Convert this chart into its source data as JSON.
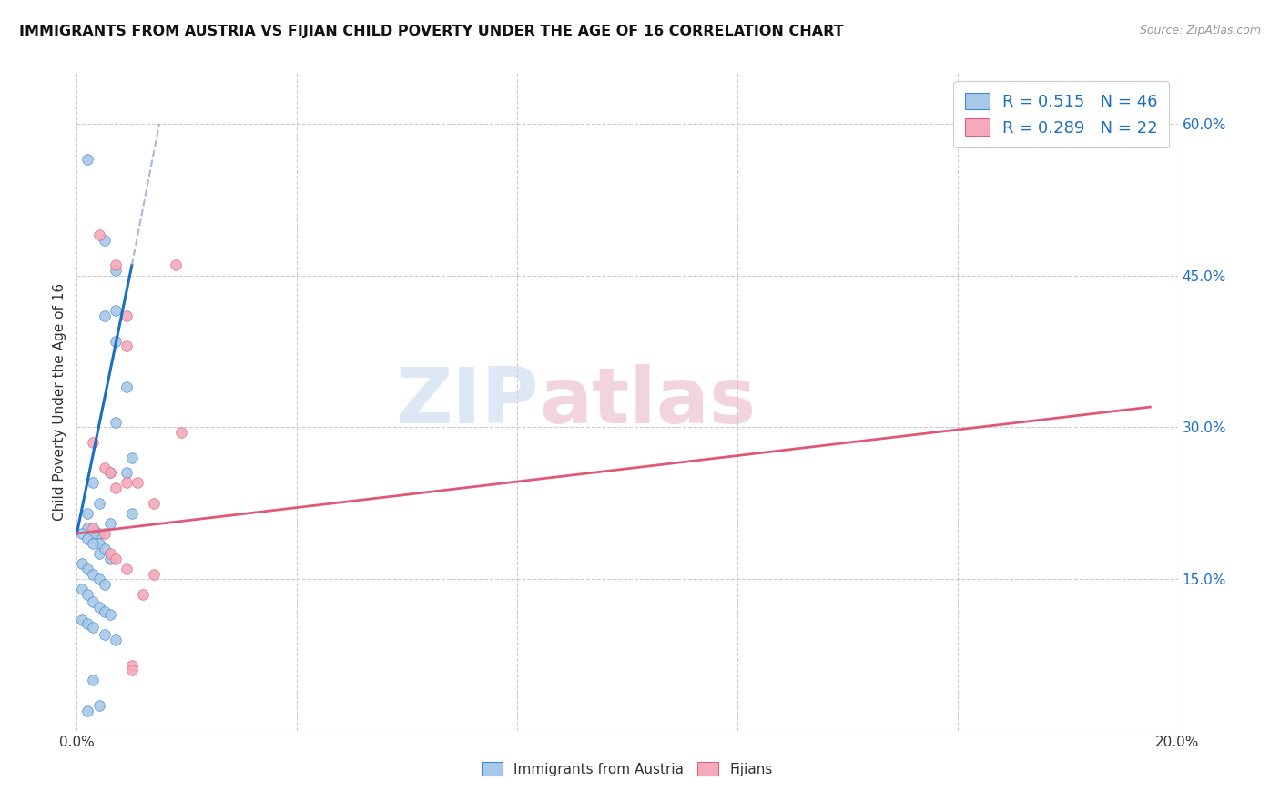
{
  "title": "IMMIGRANTS FROM AUSTRIA VS FIJIAN CHILD POVERTY UNDER THE AGE OF 16 CORRELATION CHART",
  "source": "Source: ZipAtlas.com",
  "ylabel": "Child Poverty Under the Age of 16",
  "xlim": [
    0.0,
    0.2
  ],
  "ylim": [
    0.0,
    0.65
  ],
  "xtick_pos": [
    0.0,
    0.04,
    0.08,
    0.12,
    0.16,
    0.2
  ],
  "xticklabels": [
    "0.0%",
    "",
    "",
    "",
    "",
    "20.0%"
  ],
  "ytick_pos": [
    0.0,
    0.15,
    0.3,
    0.45,
    0.6
  ],
  "ytick_labels": [
    "",
    "15.0%",
    "30.0%",
    "45.0%",
    "60.0%"
  ],
  "legend_R1": "R = 0.515",
  "legend_N1": "N = 46",
  "legend_R2": "R = 0.289",
  "legend_N2": "N = 22",
  "austria_color": "#a8c8e8",
  "fijian_color": "#f4aabb",
  "austria_edge_color": "#4488cc",
  "fijian_edge_color": "#e06080",
  "austria_line_color": "#1a6fc4",
  "fijian_line_color": "#e05878",
  "austria_scatter": [
    [
      0.002,
      0.565
    ],
    [
      0.005,
      0.485
    ],
    [
      0.005,
      0.41
    ],
    [
      0.007,
      0.455
    ],
    [
      0.007,
      0.415
    ],
    [
      0.007,
      0.385
    ],
    [
      0.009,
      0.34
    ],
    [
      0.01,
      0.27
    ],
    [
      0.007,
      0.305
    ],
    [
      0.009,
      0.255
    ],
    [
      0.01,
      0.215
    ],
    [
      0.003,
      0.245
    ],
    [
      0.006,
      0.255
    ],
    [
      0.003,
      0.2
    ],
    [
      0.004,
      0.195
    ],
    [
      0.006,
      0.205
    ],
    [
      0.002,
      0.215
    ],
    [
      0.004,
      0.225
    ],
    [
      0.002,
      0.2
    ],
    [
      0.003,
      0.195
    ],
    [
      0.004,
      0.185
    ],
    [
      0.001,
      0.195
    ],
    [
      0.002,
      0.19
    ],
    [
      0.003,
      0.185
    ],
    [
      0.004,
      0.175
    ],
    [
      0.005,
      0.18
    ],
    [
      0.006,
      0.17
    ],
    [
      0.001,
      0.165
    ],
    [
      0.002,
      0.16
    ],
    [
      0.003,
      0.155
    ],
    [
      0.004,
      0.15
    ],
    [
      0.005,
      0.145
    ],
    [
      0.001,
      0.14
    ],
    [
      0.002,
      0.135
    ],
    [
      0.003,
      0.128
    ],
    [
      0.004,
      0.122
    ],
    [
      0.005,
      0.118
    ],
    [
      0.006,
      0.115
    ],
    [
      0.001,
      0.11
    ],
    [
      0.002,
      0.106
    ],
    [
      0.003,
      0.102
    ],
    [
      0.005,
      0.095
    ],
    [
      0.007,
      0.09
    ],
    [
      0.003,
      0.05
    ],
    [
      0.004,
      0.025
    ],
    [
      0.002,
      0.02
    ]
  ],
  "fijian_scatter": [
    [
      0.004,
      0.49
    ],
    [
      0.007,
      0.46
    ],
    [
      0.009,
      0.41
    ],
    [
      0.009,
      0.38
    ],
    [
      0.018,
      0.46
    ],
    [
      0.003,
      0.285
    ],
    [
      0.005,
      0.26
    ],
    [
      0.006,
      0.255
    ],
    [
      0.007,
      0.24
    ],
    [
      0.009,
      0.245
    ],
    [
      0.011,
      0.245
    ],
    [
      0.014,
      0.225
    ],
    [
      0.003,
      0.2
    ],
    [
      0.005,
      0.195
    ],
    [
      0.006,
      0.175
    ],
    [
      0.007,
      0.17
    ],
    [
      0.009,
      0.16
    ],
    [
      0.014,
      0.155
    ],
    [
      0.019,
      0.295
    ],
    [
      0.012,
      0.135
    ],
    [
      0.01,
      0.065
    ],
    [
      0.01,
      0.06
    ]
  ],
  "austria_trendline": [
    [
      0.0,
      0.195
    ],
    [
      0.01,
      0.46
    ]
  ],
  "austria_trendline_dashed": [
    [
      0.01,
      0.46
    ],
    [
      0.015,
      0.6
    ]
  ],
  "fijian_trendline": [
    [
      0.0,
      0.195
    ],
    [
      0.195,
      0.32
    ]
  ],
  "watermark_text": "ZIPatlas",
  "watermark_color": "#c8d8ee",
  "watermark_color2": "#e8b8c8",
  "background_color": "#ffffff",
  "grid_color": "#cccccc",
  "legend_label1": "Immigrants from Austria",
  "legend_label2": "Fijians"
}
